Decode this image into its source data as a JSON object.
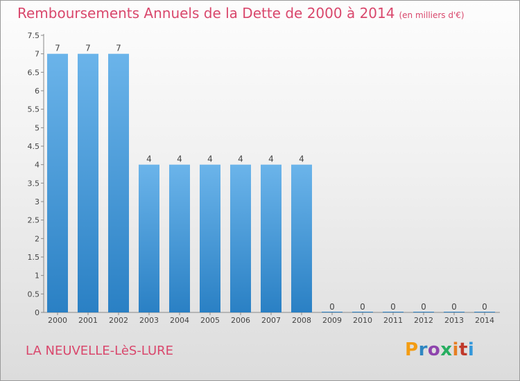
{
  "header": {
    "title": "Remboursements Annuels de la Dette de 2000 à 2014",
    "unit": "(en milliers d'€)"
  },
  "footer": {
    "location": "LA NEUVELLE-LèS-LURE",
    "logo_text": "Proxiti",
    "logo_colors": [
      "#f39c12",
      "#2e86c1",
      "#8e44ad",
      "#27ae60",
      "#e67e22",
      "#c0392b",
      "#3498db"
    ]
  },
  "colors": {
    "title": "#d9476c",
    "bar_top": "#6bb4ea",
    "bar_bottom": "#2a80c4",
    "text": "#444444"
  },
  "chart_data": {
    "type": "bar",
    "title": "Remboursements Annuels de la Dette de 2000 à 2014",
    "categories": [
      "2000",
      "2001",
      "2002",
      "2003",
      "2004",
      "2005",
      "2006",
      "2007",
      "2008",
      "2009",
      "2010",
      "2011",
      "2012",
      "2013",
      "2014"
    ],
    "values": [
      7,
      7,
      7,
      4,
      4,
      4,
      4,
      4,
      4,
      0,
      0,
      0,
      0,
      0,
      0
    ],
    "data_labels": [
      "7",
      "7",
      "7",
      "4",
      "4",
      "4",
      "4",
      "4",
      "4",
      "0",
      "0",
      "0",
      "0",
      "0",
      "0"
    ],
    "yticks": [
      "0",
      "0.5",
      "1",
      "1.5",
      "2",
      "2.5",
      "3",
      "3.5",
      "4",
      "4.5",
      "5",
      "5.5",
      "6",
      "6.5",
      "7",
      "7.5"
    ],
    "ylim": [
      0,
      7.5
    ],
    "grid": false,
    "legend": "none"
  }
}
